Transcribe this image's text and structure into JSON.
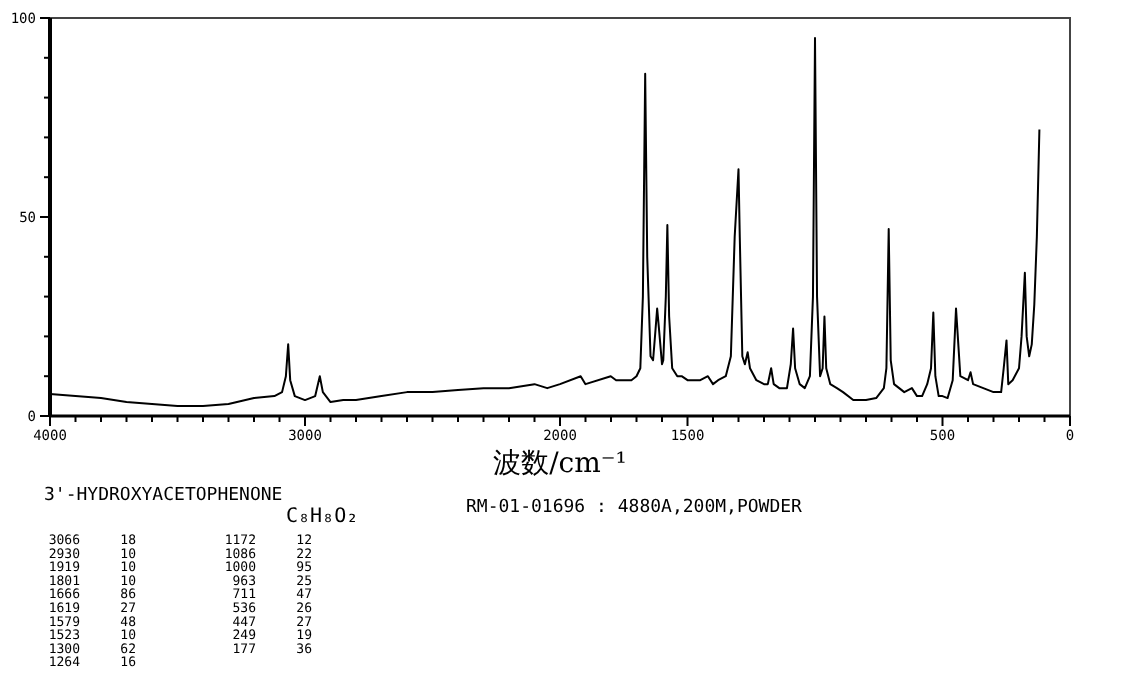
{
  "chart_data": {
    "type": "line",
    "xlabel": "波数/cm⁻¹",
    "x": [
      4000,
      3900,
      3800,
      3700,
      3600,
      3500,
      3400,
      3300,
      3200,
      3120,
      3090,
      3075,
      3066,
      3058,
      3040,
      3000,
      2960,
      2942,
      2930,
      2900,
      2850,
      2800,
      2700,
      2600,
      2500,
      2400,
      2300,
      2200,
      2100,
      2050,
      2000,
      1919,
      1900,
      1801,
      1780,
      1750,
      1720,
      1700,
      1685,
      1675,
      1666,
      1658,
      1645,
      1635,
      1625,
      1619,
      1612,
      1600,
      1595,
      1585,
      1579,
      1572,
      1560,
      1540,
      1523,
      1500,
      1450,
      1420,
      1400,
      1380,
      1350,
      1330,
      1315,
      1300,
      1295,
      1285,
      1275,
      1264,
      1255,
      1230,
      1200,
      1185,
      1172,
      1162,
      1140,
      1110,
      1095,
      1086,
      1078,
      1060,
      1040,
      1020,
      1008,
      1000,
      992,
      980,
      970,
      963,
      956,
      940,
      914,
      890,
      850,
      800,
      760,
      730,
      720,
      711,
      703,
      690,
      650,
      620,
      600,
      580,
      560,
      545,
      536,
      528,
      515,
      500,
      480,
      460,
      452,
      447,
      440,
      430,
      400,
      390,
      380,
      340,
      300,
      270,
      260,
      249,
      242,
      225,
      200,
      190,
      177,
      170,
      160,
      150,
      140,
      130,
      120
    ],
    "series": [
      {
        "color": "#000000",
        "values": [
          5.5,
          5,
          4.5,
          3.5,
          3,
          2.5,
          2.5,
          3,
          4.5,
          5,
          6,
          10,
          18,
          9,
          5,
          4,
          5,
          10,
          6,
          3.5,
          4,
          4,
          5,
          6,
          6,
          6.5,
          7,
          7,
          8,
          7,
          8,
          10,
          8,
          10,
          9,
          9,
          9,
          10,
          12,
          30,
          86,
          40,
          15,
          14,
          22,
          27,
          22,
          13,
          14,
          30,
          48,
          25,
          12,
          10,
          10,
          9,
          9,
          10,
          8,
          9,
          10,
          15,
          45,
          62,
          45,
          15,
          13,
          16,
          12,
          9,
          8,
          8,
          12,
          8,
          7,
          7,
          13,
          22,
          12,
          8,
          7,
          10,
          30,
          95,
          30,
          10,
          12,
          25,
          12,
          8,
          7,
          6,
          4,
          4,
          4.5,
          7,
          12,
          47,
          14,
          8,
          6,
          7,
          5,
          5,
          8,
          12,
          26,
          10,
          5,
          5,
          4.5,
          9,
          20,
          27,
          20,
          10,
          9,
          11,
          8,
          7,
          6,
          6,
          12,
          19,
          8,
          9,
          12,
          20,
          36,
          20,
          15,
          18,
          28,
          45,
          72
        ]
      }
    ],
    "xlim": [
      4000,
      0
    ],
    "xticks": [
      4000,
      {
        "value": 3900,
        "label": null
      },
      {
        "value": 3800,
        "label": null
      },
      {
        "value": 3700,
        "label": null
      },
      {
        "value": 3600,
        "label": null
      },
      {
        "value": 3500,
        "label": null
      },
      {
        "value": 3400,
        "label": null
      },
      {
        "value": 3300,
        "label": null
      },
      {
        "value": 3200,
        "label": null
      },
      {
        "value": 3100,
        "label": null
      },
      3000,
      {
        "value": 2900,
        "label": null
      },
      {
        "value": 2800,
        "label": null
      },
      {
        "value": 2700,
        "label": null
      },
      {
        "value": 2600,
        "label": null
      },
      {
        "value": 2500,
        "label": null
      },
      {
        "value": 2400,
        "label": null
      },
      {
        "value": 2300,
        "label": null
      },
      {
        "value": 2200,
        "label": null
      },
      {
        "value": 2100,
        "label": null
      },
      2000,
      {
        "value": 1900,
        "label": null
      },
      {
        "value": 1800,
        "label": null
      },
      {
        "value": 1700,
        "label": null
      },
      {
        "value": 1600,
        "label": null
      },
      1500,
      {
        "value": 1400,
        "label": null
      },
      {
        "value": 1300,
        "label": null
      },
      {
        "value": 1200,
        "label": null
      },
      {
        "value": 1100,
        "label": null
      },
      {
        "value": 1000,
        "label": null
      },
      {
        "value": 900,
        "label": null
      },
      {
        "value": 800,
        "label": null
      },
      {
        "value": 700,
        "label": null
      },
      {
        "value": 600,
        "label": null
      },
      500,
      {
        "value": 400,
        "label": null
      },
      {
        "value": 300,
        "label": null
      },
      {
        "value": 200,
        "label": null
      },
      {
        "value": 100,
        "label": null
      },
      0
    ],
    "ylim": [
      0,
      100
    ],
    "yticks": [
      0,
      {
        "value": 10,
        "label": null
      },
      {
        "value": 20,
        "label": null
      },
      {
        "value": 30,
        "label": null
      },
      {
        "value": 40,
        "label": null
      },
      50,
      {
        "value": 60,
        "label": null
      },
      {
        "value": 70,
        "label": null
      },
      {
        "value": 80,
        "label": null
      },
      {
        "value": 90,
        "label": null
      },
      100
    ],
    "grid": false,
    "annotations": [
      "3'-HYDROXYACETOPHENONE",
      "C₈H₈O₂",
      "RM-01-01696 : 4880A,200M,POWDER",
      "3066 18",
      "2930 10",
      "1919 10",
      "1801 10",
      "1666 86",
      "1619 27",
      "1579 48",
      "1523 10",
      "1300 62",
      "1264 16",
      "1172 12",
      "1086 22",
      "1000 95",
      "963 25",
      "711 47",
      "536 26",
      "447 27",
      "249 19",
      "177 36"
    ]
  }
}
